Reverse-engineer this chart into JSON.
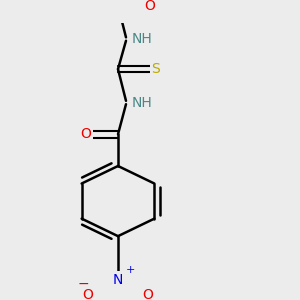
{
  "bg_color": "#ececec",
  "atom_colors": {
    "C": "#000000",
    "H": "#4a8888",
    "N": "#0000ee",
    "O": "#ee0000",
    "S": "#bbaa00"
  },
  "bond_color": "#000000",
  "bond_width": 1.5,
  "figsize": [
    3.0,
    3.0
  ],
  "dpi": 100
}
